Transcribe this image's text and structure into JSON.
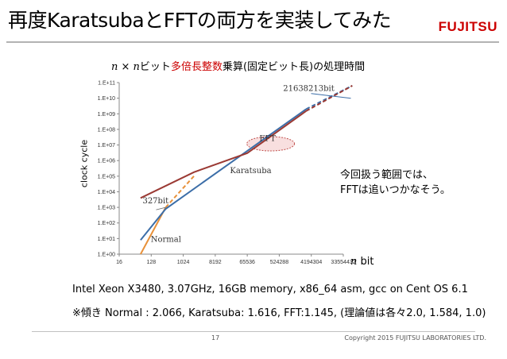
{
  "slide": {
    "title": "再度KaratsubaとFFTの両方を実装してみた",
    "logo": "FUJITSU",
    "note_line1": "今回扱う範囲では、",
    "note_line2": "FFTは追いつかなそう。",
    "spec": "Intel Xeon X3480, 3.07GHz, 16GB memory, x86_64 asm, gcc on Cent OS 6.1",
    "slopes": "※傾き Normal : 2.066, Karatsuba: 1.616, FFT:1.145,  (理論値は各々2.0, 1.584, 1.0)",
    "page_number": "17",
    "copyright": "Copyright 2015 FUJITSU LABORATORIES LTD."
  },
  "chart_title": {
    "var1": "n",
    "times": " × ",
    "var2": "n",
    "part_a": "ビット",
    "highlight": "多倍長整数",
    "part_b": "乗算(固定ビット長)の処理時間"
  },
  "chart_data": {
    "type": "line",
    "xscale": "log2",
    "yscale": "log10",
    "xlabel_var": "n",
    "xlabel_unit": " bit",
    "ylabel": "clock cycle",
    "x_ticks": [
      "16",
      "128",
      "1024",
      "8192",
      "65536",
      "524288",
      "4194304",
      "33554432"
    ],
    "y_ticks": [
      "1.E+00",
      "1.E+01",
      "1.E+02",
      "1.E+03",
      "1.E+04",
      "1.E+05",
      "1.E+06",
      "1.E+07",
      "1.E+08",
      "1.E+09",
      "1.E+10",
      "1.E+11"
    ],
    "xlim": [
      16,
      33554432
    ],
    "ylim": [
      1,
      100000000000
    ],
    "grid": false,
    "series": [
      {
        "name": "Normal",
        "color": "#e8913a",
        "measured": [
          [
            64,
            1.0
          ],
          [
            327,
            1000
          ]
        ],
        "extrapolated": [
          [
            327,
            1000
          ],
          [
            2048,
            100000
          ]
        ]
      },
      {
        "name": "Karatsuba",
        "color": "#3c6ea8",
        "measured": [
          [
            64,
            8
          ],
          [
            327,
            800
          ],
          [
            3000000,
            2000000000
          ]
        ],
        "extrapolated": [
          [
            3000000,
            2000000000
          ],
          [
            60000000,
            63000000000
          ]
        ]
      },
      {
        "name": "FFT",
        "color": "#9b3a34",
        "measured": [
          [
            64,
            4000
          ],
          [
            2048,
            180000
          ],
          [
            65536,
            3000000
          ],
          [
            3000000,
            1500000000
          ]
        ],
        "extrapolated": [
          [
            3000000,
            1500000000
          ],
          [
            60000000,
            63000000000
          ]
        ]
      }
    ],
    "annotations": [
      {
        "text": "21638213bit",
        "x": 21638213,
        "y": 20000000000
      },
      {
        "text": "327bit",
        "x": 327,
        "y": 1000
      },
      {
        "text": "FFT",
        "x": 70000,
        "y": 10000000
      },
      {
        "text": "Karatsuba",
        "x": 524288,
        "y": 100000
      },
      {
        "text": "Normal",
        "x": 256,
        "y": 8
      }
    ]
  }
}
